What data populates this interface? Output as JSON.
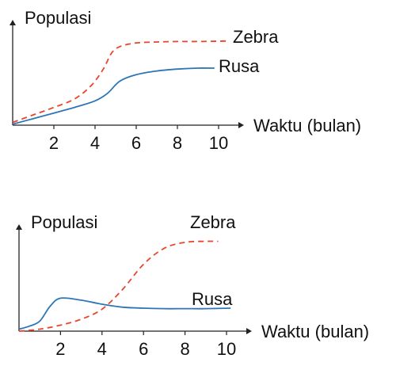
{
  "colors": {
    "zebra": "#e8462c",
    "rusa": "#2e75b6",
    "axis": "#222222"
  },
  "chart_data": [
    {
      "type": "line",
      "title": "",
      "xlabel": "Waktu (bulan)",
      "ylabel": "Populasi",
      "xlim": [
        0,
        11.4
      ],
      "ylim": [
        0,
        100
      ],
      "xticks": [
        2,
        4,
        6,
        8,
        10
      ],
      "grid": false,
      "legend": "inline-labels",
      "series": [
        {
          "name": "Zebra",
          "style": "dashed",
          "color": "#e8462c",
          "x": [
            0,
            1,
            2,
            3,
            3.8,
            4.4,
            4.8,
            5.2,
            6,
            7,
            8,
            9,
            10.4
          ],
          "y": [
            3,
            11,
            19,
            28,
            42,
            60,
            77,
            84,
            88,
            89,
            89.5,
            89.5,
            90
          ]
        },
        {
          "name": "Rusa",
          "style": "solid",
          "color": "#2e75b6",
          "x": [
            0,
            1,
            2,
            3,
            4,
            4.6,
            5.2,
            6,
            7,
            8,
            9,
            9.8
          ],
          "y": [
            1,
            7,
            13,
            19,
            26,
            34,
            47,
            54,
            58,
            60,
            61,
            61
          ]
        }
      ]
    },
    {
      "type": "line",
      "title": "",
      "xlabel": "Waktu (bulan)",
      "ylabel": "Populasi",
      "xlim": [
        0,
        11.4
      ],
      "ylim": [
        0,
        100
      ],
      "xticks": [
        2,
        4,
        6,
        8,
        10
      ],
      "grid": false,
      "legend": "inline-labels",
      "series": [
        {
          "name": "Zebra",
          "style": "dashed",
          "color": "#e8462c",
          "x": [
            0,
            1,
            2,
            3,
            4,
            5,
            6,
            7,
            8,
            9,
            9.6
          ],
          "y": [
            0,
            2,
            6,
            12,
            22,
            42,
            67,
            83,
            89,
            90,
            90
          ]
        },
        {
          "name": "Rusa",
          "style": "solid",
          "color": "#2e75b6",
          "x": [
            0,
            0.5,
            1,
            1.5,
            2,
            3,
            4,
            5,
            6,
            7,
            8,
            9,
            10.2
          ],
          "y": [
            2,
            5,
            10,
            25,
            33,
            31,
            27,
            24,
            23,
            22.5,
            22.5,
            22.5,
            23
          ]
        }
      ]
    }
  ]
}
